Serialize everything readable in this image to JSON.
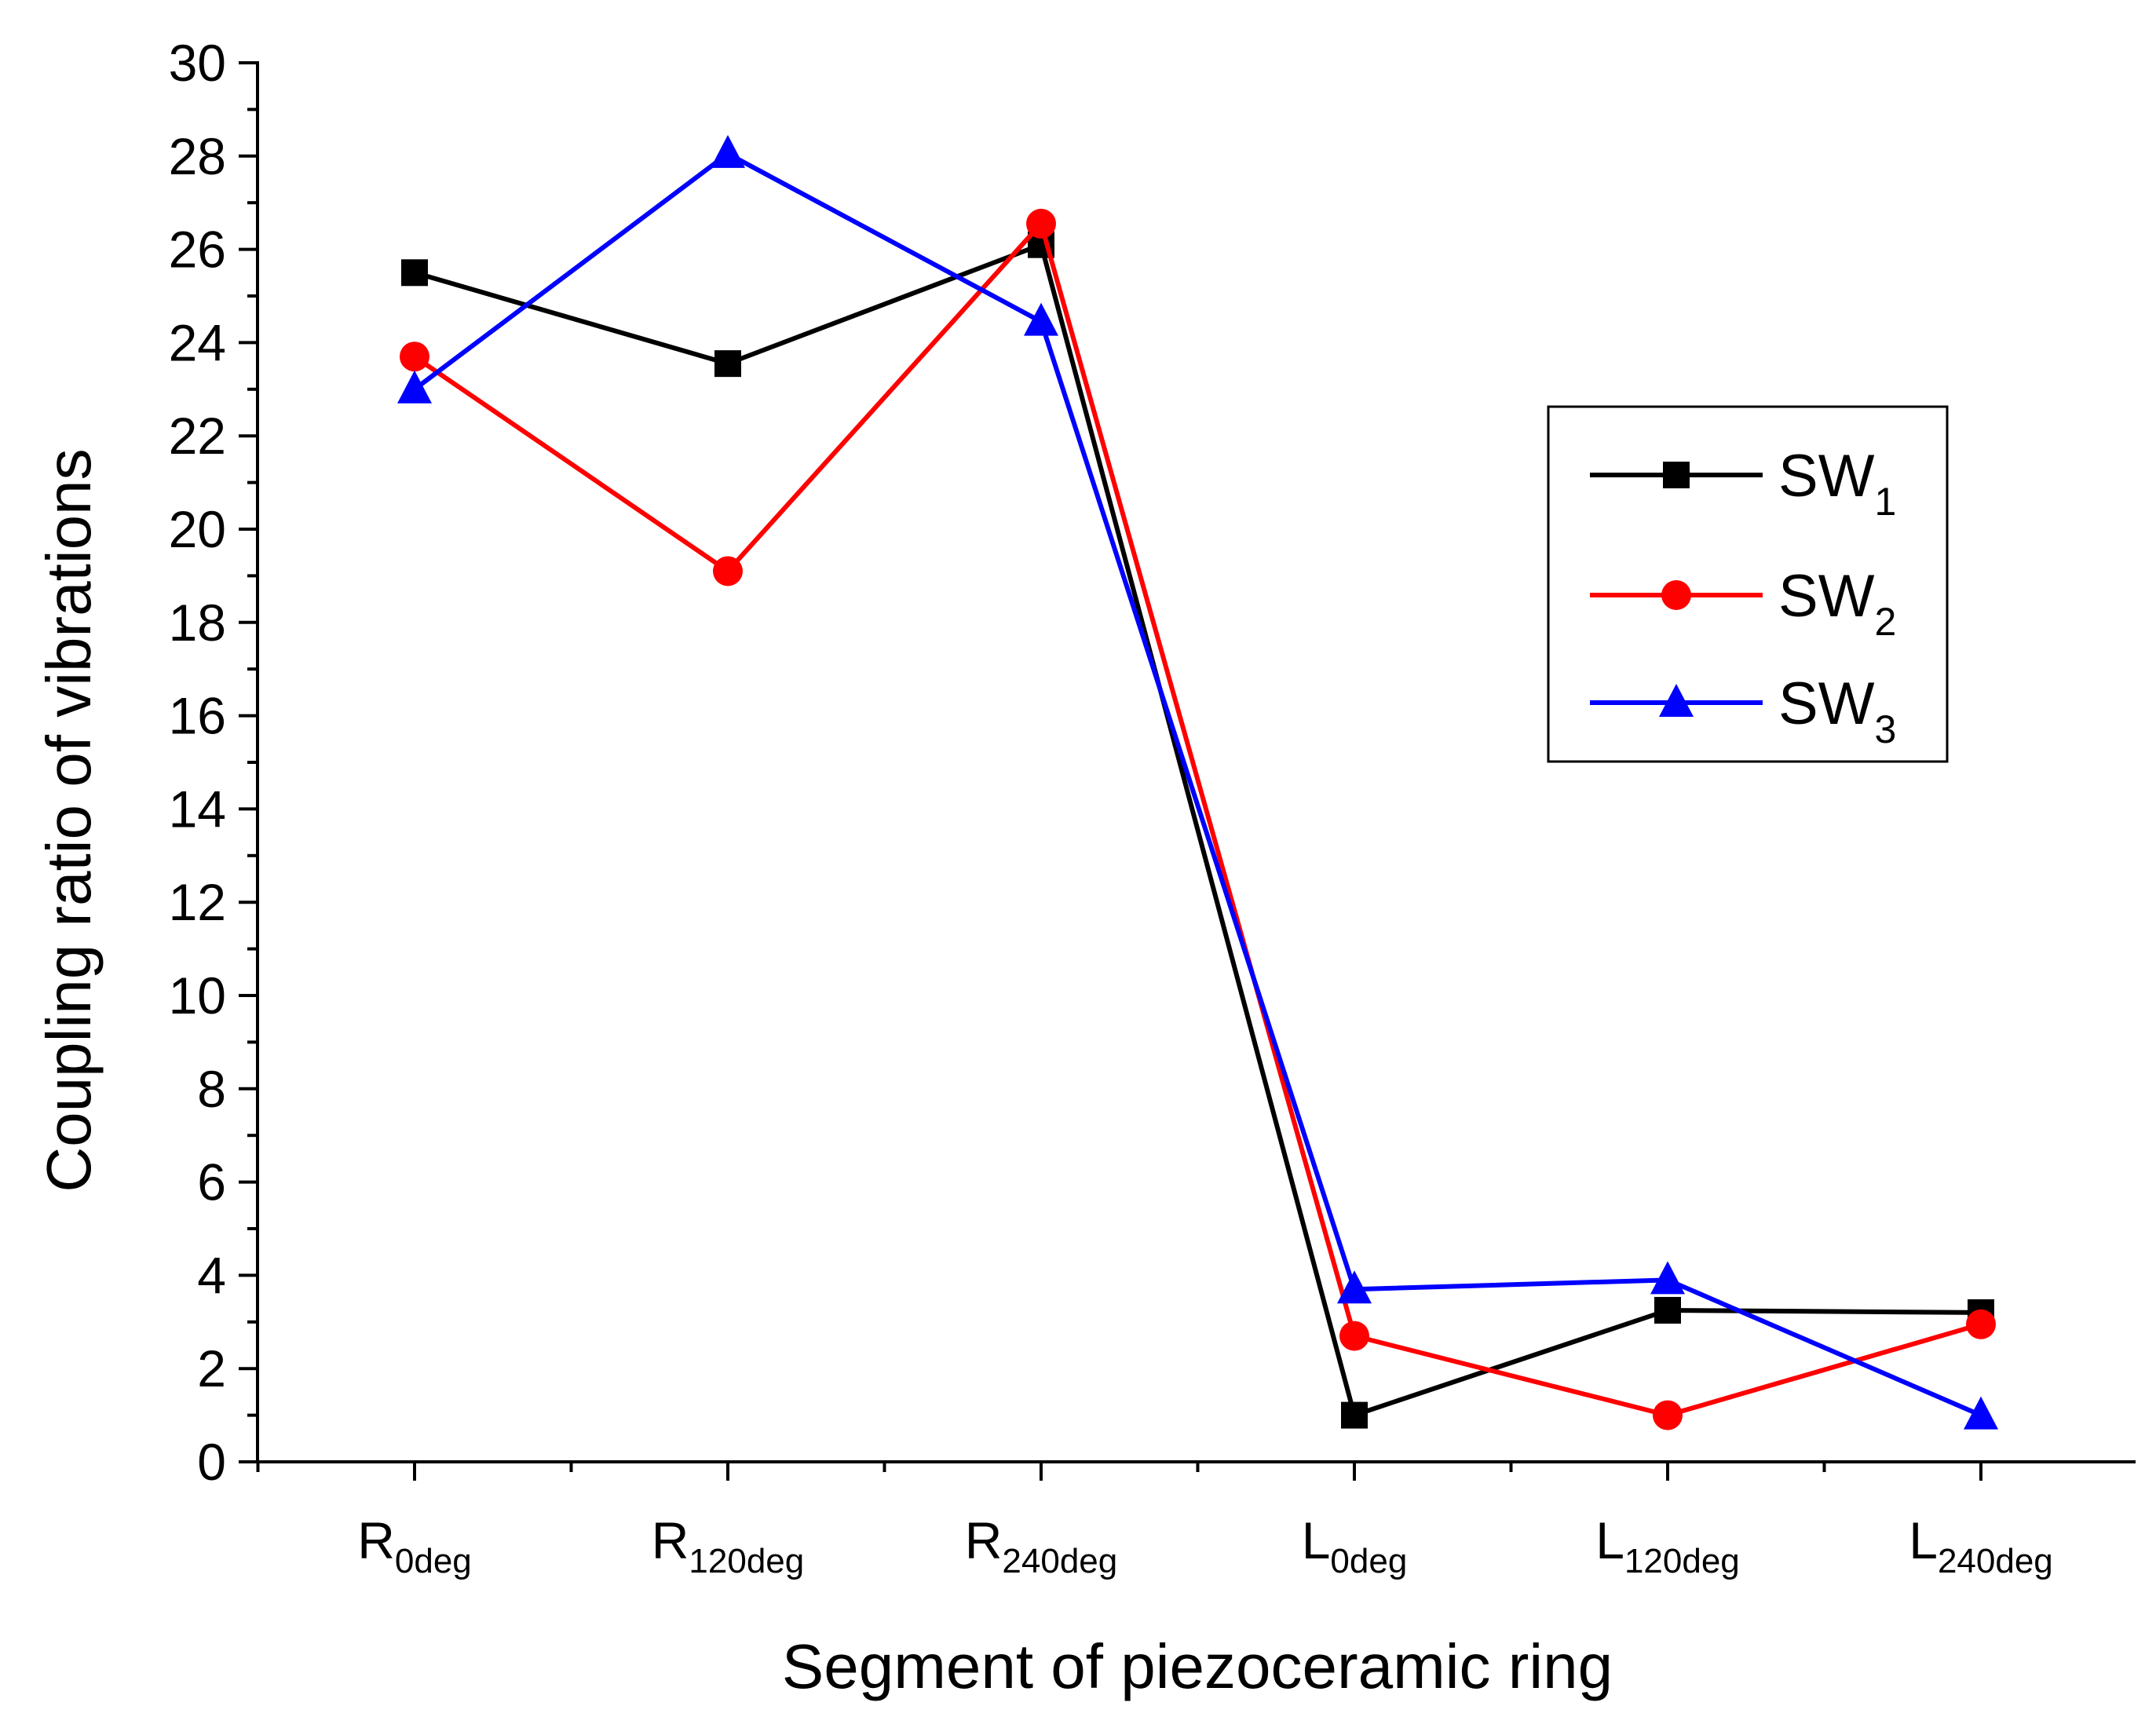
{
  "chart_data": {
    "type": "line",
    "xlabel": "Segment of piezoceramic ring",
    "ylabel": "Coupling ratio of vibrations",
    "ylim": [
      0,
      30
    ],
    "ytick_step": 2,
    "grid": false,
    "legend_position": "right-middle",
    "categories": [
      {
        "main": "R",
        "sub": "0deg"
      },
      {
        "main": "R",
        "sub": "120deg"
      },
      {
        "main": "R",
        "sub": "240deg"
      },
      {
        "main": "L",
        "sub": "0deg"
      },
      {
        "main": "L",
        "sub": "120deg"
      },
      {
        "main": "L",
        "sub": "240deg"
      }
    ],
    "series": [
      {
        "name_main": "SW",
        "name_sub": "1",
        "color": "#000000",
        "marker": "square",
        "values": [
          25.5,
          23.55,
          26.1,
          1.0,
          3.25,
          3.2
        ]
      },
      {
        "name_main": "SW",
        "name_sub": "2",
        "color": "#ff0000",
        "marker": "circle",
        "values": [
          23.7,
          19.1,
          26.55,
          2.7,
          1.0,
          2.95
        ]
      },
      {
        "name_main": "SW",
        "name_sub": "3",
        "color": "#0000ff",
        "marker": "triangle",
        "values": [
          23.0,
          28.05,
          24.45,
          3.7,
          3.9,
          1.0
        ]
      }
    ]
  }
}
